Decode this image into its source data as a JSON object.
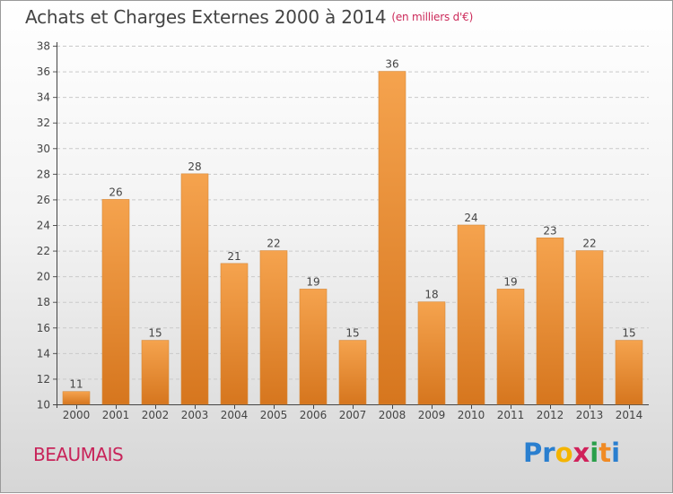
{
  "header": {
    "title": "Achats et Charges Externes 2000 à 2014",
    "unit": "(en milliers d'€)"
  },
  "footer": {
    "commune": "BEAUMAIS",
    "brand_letters": [
      "P",
      "r",
      "o",
      "x",
      "i",
      "t",
      "i"
    ],
    "brand_colors": [
      "#2a7fcf",
      "#2a7fcf",
      "#f4b400",
      "#d0215a",
      "#2a9f4a",
      "#f08a24",
      "#2a7fcf"
    ]
  },
  "chart_data": {
    "type": "bar",
    "title": "Achats et Charges Externes 2000 à 2014",
    "subtitle": "(en milliers d'€)",
    "xlabel": "",
    "ylabel": "",
    "categories": [
      "2000",
      "2001",
      "2002",
      "2003",
      "2004",
      "2005",
      "2006",
      "2007",
      "2008",
      "2009",
      "2010",
      "2011",
      "2012",
      "2013",
      "2014"
    ],
    "values": [
      11,
      26,
      15,
      28,
      21,
      22,
      19,
      15,
      36,
      18,
      24,
      19,
      23,
      22,
      15
    ],
    "ylim": [
      10,
      38
    ],
    "yticks": [
      10,
      12,
      14,
      16,
      18,
      20,
      22,
      24,
      26,
      28,
      30,
      32,
      34,
      36,
      38
    ],
    "grid": true,
    "bar_color_top": "#f5a34e",
    "bar_color_bottom": "#d6761e"
  }
}
